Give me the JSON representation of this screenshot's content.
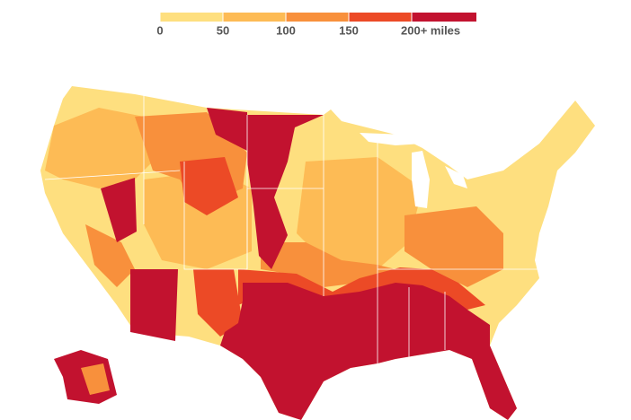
{
  "legend": {
    "ticks": [
      0,
      50,
      100,
      150,
      {
        "value": 200,
        "label": "200+ miles"
      }
    ],
    "colors": [
      "#fedf7f",
      "#fdbb55",
      "#f8903c",
      "#ec4a26",
      "#c2122f"
    ]
  }
}
